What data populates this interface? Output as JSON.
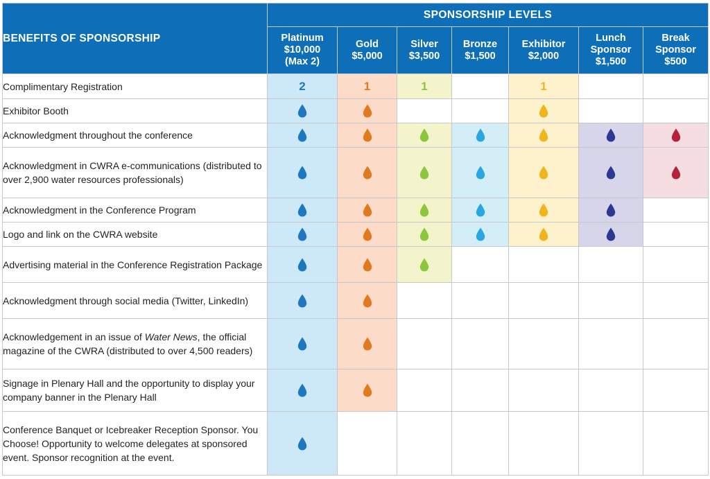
{
  "header": {
    "benefits_title": "BENEFITS OF SPONSORSHIP",
    "levels_title": "SPONSORSHIP LEVELS",
    "levels": [
      {
        "key": "plat",
        "lines": [
          "Platinum",
          "$10,000",
          "(Max 2)"
        ]
      },
      {
        "key": "gold",
        "lines": [
          "Gold",
          "$5,000"
        ]
      },
      {
        "key": "silv",
        "lines": [
          "Silver",
          "$3,500"
        ]
      },
      {
        "key": "bron",
        "lines": [
          "Bronze",
          "$1,500"
        ]
      },
      {
        "key": "exhb",
        "lines": [
          "Exhibitor",
          "$2,000"
        ]
      },
      {
        "key": "lunch",
        "lines": [
          "Lunch",
          "Sponsor",
          "$1,500"
        ]
      },
      {
        "key": "break",
        "lines": [
          "Break",
          "Sponsor",
          "$500"
        ]
      }
    ]
  },
  "colors": {
    "header_blue": "#0e6fb8",
    "plat": "#1d78bf",
    "gold": "#e07a21",
    "silv": "#8cc63e",
    "bron": "#29a8e0",
    "exhb": "#f0b51e",
    "lunch": "#2b3990",
    "break": "#b5203a",
    "bg": {
      "plat": "#cde9f8",
      "gold": "#fcdcc8",
      "silv": "#f4f4cc",
      "bron": "#d4eef8",
      "exhb": "#fdf2cc",
      "lunch": "#d6d5ea",
      "break": "#f5dde1"
    }
  },
  "icon": "water-drop-icon",
  "rows": [
    {
      "benefit": "Complimentary Registration",
      "cells": {
        "plat": "2",
        "gold": "1",
        "silv": "1",
        "bron": "",
        "exhb": "1",
        "lunch": "",
        "break": ""
      }
    },
    {
      "benefit": "Exhibitor Booth",
      "cells": {
        "plat": "drop",
        "gold": "drop",
        "silv": "",
        "bron": "",
        "exhb": "drop",
        "lunch": "",
        "break": ""
      }
    },
    {
      "benefit": "Acknowledgment throughout the conference",
      "cells": {
        "plat": "drop",
        "gold": "drop",
        "silv": "drop",
        "bron": "drop",
        "exhb": "drop",
        "lunch": "drop",
        "break": "drop"
      }
    },
    {
      "benefit": "Acknowledgment in CWRA e-communications (distributed to over 2,900 water resources professionals)",
      "cells": {
        "plat": "drop",
        "gold": "drop",
        "silv": "drop",
        "bron": "drop",
        "exhb": "drop",
        "lunch": "drop",
        "break": "drop"
      }
    },
    {
      "benefit": "Acknowledgment in the Conference Program",
      "cells": {
        "plat": "drop",
        "gold": "drop",
        "silv": "drop",
        "bron": "drop",
        "exhb": "drop",
        "lunch": "drop",
        "break": ""
      }
    },
    {
      "benefit": "Logo and link on the CWRA website",
      "cells": {
        "plat": "drop",
        "gold": "drop",
        "silv": "drop",
        "bron": "drop",
        "exhb": "drop",
        "lunch": "drop",
        "break": ""
      }
    },
    {
      "benefit": "Advertising material in the Conference Registration Package",
      "cells": {
        "plat": "drop",
        "gold": "drop",
        "silv": "drop",
        "bron": "",
        "exhb": "",
        "lunch": "",
        "break": ""
      }
    },
    {
      "benefit": "Acknowledgment through social media (Twitter, LinkedIn)",
      "cells": {
        "plat": "drop",
        "gold": "drop",
        "silv": "",
        "bron": "",
        "exhb": "",
        "lunch": "",
        "break": ""
      }
    },
    {
      "benefit_parts": [
        "Acknowledgement in an issue of ",
        "Water News",
        ", the official magazine of the CWRA (distributed to over 4,500 readers)"
      ],
      "cells": {
        "plat": "drop",
        "gold": "drop",
        "silv": "",
        "bron": "",
        "exhb": "",
        "lunch": "",
        "break": ""
      }
    },
    {
      "benefit": "Signage in Plenary Hall and the opportunity to display your company banner in the Plenary Hall",
      "cells": {
        "plat": "drop",
        "gold": "drop",
        "silv": "",
        "bron": "",
        "exhb": "",
        "lunch": "",
        "break": ""
      }
    },
    {
      "benefit": "Conference Banquet or Icebreaker Reception Sponsor. You Choose! Opportunity to welcome delegates at sponsored event. Sponsor recognition at the event.",
      "cells": {
        "plat": "drop",
        "gold": "",
        "silv": "",
        "bron": "",
        "exhb": "",
        "lunch": "",
        "break": ""
      }
    }
  ]
}
